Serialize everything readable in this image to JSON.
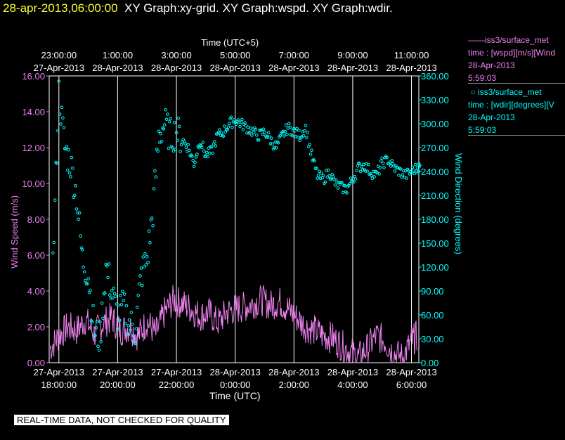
{
  "header": {
    "timestamp": "28-apr-2013,06:00:00",
    "graphs": "XY Graph:xy-grid.  XY Graph:wspd.  XY Graph:wdir."
  },
  "legend": {
    "wspd": {
      "line1": "iss3/surface_met",
      "line2": "time : [wspd][m/s][Wind",
      "line3": "28-Apr-2013",
      "line4": "5:59:03"
    },
    "wdir": {
      "line1": "iss3/surface_met",
      "line2": "time : [wdir][degrees][V",
      "line3": "28-Apr-2013",
      "line4": "5:59:03"
    }
  },
  "footer": {
    "qc_note": "REAL-TIME DATA, NOT CHECKED FOR QUALITY"
  },
  "chart_data": {
    "type": "line",
    "xlabel": "Time (UTC)",
    "x2label": "Time (UTC+5)",
    "ylabel": "Wind Speed (m/s)",
    "y2label": "Wind Direction (degrees)",
    "xlim": [
      "27-Apr-2013 17:40",
      "28-Apr-2013 06:15"
    ],
    "ylim": [
      0,
      16
    ],
    "y2lim": [
      0,
      360
    ],
    "yticks": [
      "0.00",
      "2.00",
      "4.00",
      "6.00",
      "8.00",
      "10.00",
      "12.00",
      "14.00",
      "16.00"
    ],
    "y2ticks": [
      "0.00",
      "30.00",
      "60.00",
      "90.00",
      "120.00",
      "150.00",
      "180.00",
      "210.00",
      "240.00",
      "270.00",
      "300.00",
      "330.00",
      "360.00"
    ],
    "bottom_ticks": [
      {
        "date": "27-Apr-2013",
        "time": "18:00:00"
      },
      {
        "date": "27-Apr-2013",
        "time": "20:00:00"
      },
      {
        "date": "27-Apr-2013",
        "time": "22:00:00"
      },
      {
        "date": "28-Apr-2013",
        "time": "0:00:00"
      },
      {
        "date": "28-Apr-2013",
        "time": "2:00:00"
      },
      {
        "date": "28-Apr-2013",
        "time": "4:00:00"
      },
      {
        "date": "28-Apr-2013",
        "time": "6:00:00"
      }
    ],
    "top_ticks": [
      {
        "time": "23:00:00",
        "date": "27-Apr-2013"
      },
      {
        "time": "1:00:00",
        "date": "28-Apr-2013"
      },
      {
        "time": "3:00:00",
        "date": "28-Apr-2013"
      },
      {
        "time": "5:00:00",
        "date": "28-Apr-2013"
      },
      {
        "time": "7:00:00",
        "date": "28-Apr-2013"
      },
      {
        "time": "9:00:00",
        "date": "28-Apr-2013"
      },
      {
        "time": "11:00:00",
        "date": "28-Apr-2013"
      }
    ],
    "grid": true,
    "legend_position": "right",
    "series": [
      {
        "name": "iss3/surface_met",
        "quantity": "wspd",
        "axis": "left",
        "color": "#ee82ee",
        "mode": "line",
        "x_hours_utc": [
          17.7,
          18.0,
          18.3,
          18.6,
          18.9,
          19.2,
          19.5,
          19.8,
          20.1,
          20.4,
          20.7,
          21.0,
          21.3,
          21.6,
          21.9,
          22.2,
          22.5,
          22.8,
          23.1,
          23.4,
          23.7,
          24.0,
          24.3,
          24.6,
          24.9,
          25.2,
          25.5,
          25.8,
          26.1,
          26.4,
          26.7,
          27.0,
          27.3,
          27.6,
          27.9,
          28.2,
          28.5,
          28.8,
          29.1,
          29.4,
          29.7,
          30.0,
          30.2
        ],
        "y": [
          0.8,
          1.5,
          2.0,
          1.8,
          2.4,
          1.6,
          2.2,
          2.5,
          1.8,
          2.0,
          1.5,
          2.3,
          1.6,
          2.8,
          3.5,
          3.3,
          3.0,
          2.6,
          2.8,
          2.2,
          2.8,
          3.0,
          3.1,
          3.3,
          3.5,
          3.2,
          3.4,
          3.0,
          2.5,
          2.0,
          1.8,
          1.5,
          1.4,
          1.0,
          0.6,
          0.3,
          0.8,
          1.5,
          1.2,
          0.5,
          0.3,
          1.2,
          1.5
        ]
      },
      {
        "name": "iss3/surface_met",
        "quantity": "wdir",
        "axis": "right",
        "color": "#00ffff",
        "mode": "points",
        "x_hours_utc": [
          17.8,
          18.0,
          18.2,
          18.4,
          18.6,
          18.8,
          19.0,
          19.2,
          19.4,
          19.6,
          19.8,
          20.0,
          20.2,
          20.4,
          20.6,
          20.8,
          21.0,
          21.2,
          21.4,
          21.6,
          21.8,
          22.0,
          22.2,
          22.4,
          22.6,
          22.8,
          23.0,
          23.2,
          23.4,
          23.6,
          23.8,
          24.0,
          24.2,
          24.4,
          24.6,
          24.8,
          25.0,
          25.2,
          25.4,
          25.6,
          25.8,
          26.0,
          26.2,
          26.4,
          26.6,
          26.8,
          27.0,
          27.2,
          27.4,
          27.6,
          27.8,
          28.0,
          28.2,
          28.4,
          28.6,
          28.8,
          29.0,
          29.2,
          29.4,
          29.6,
          29.8,
          30.0,
          30.2
        ],
        "y": [
          125,
          340,
          270,
          250,
          210,
          130,
          110,
          40,
          30,
          120,
          90,
          60,
          70,
          50,
          40,
          110,
          130,
          190,
          285,
          300,
          285,
          290,
          280,
          270,
          250,
          280,
          260,
          265,
          285,
          290,
          300,
          305,
          300,
          295,
          290,
          285,
          290,
          280,
          270,
          285,
          295,
          290,
          285,
          295,
          260,
          235,
          230,
          240,
          225,
          220,
          218,
          230,
          245,
          248,
          240,
          235,
          250,
          255,
          245,
          240,
          235,
          240,
          245
        ]
      }
    ]
  }
}
